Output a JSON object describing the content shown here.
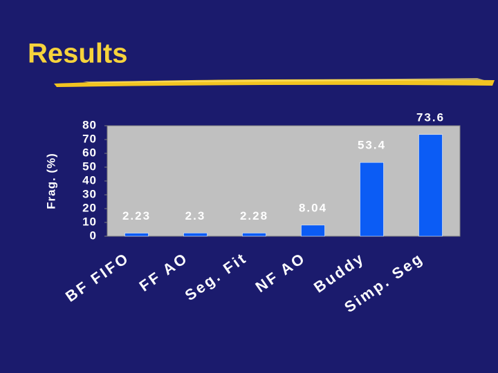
{
  "chart_data": {
    "type": "bar",
    "title": "Results",
    "y_label": "Frag. (%)",
    "categories": [
      "BF FIFO",
      "FF AO",
      "Seg. Fit",
      "NF AO",
      "Buddy",
      "Simp. Seg"
    ],
    "values": [
      2.23,
      2.3,
      2.28,
      8.04,
      53.4,
      73.6
    ],
    "color": "#0b5cf5",
    "ylim": [
      0,
      80
    ],
    "yticks": [
      0,
      10,
      20,
      30,
      40,
      50,
      60,
      70,
      80
    ],
    "grid": false
  }
}
